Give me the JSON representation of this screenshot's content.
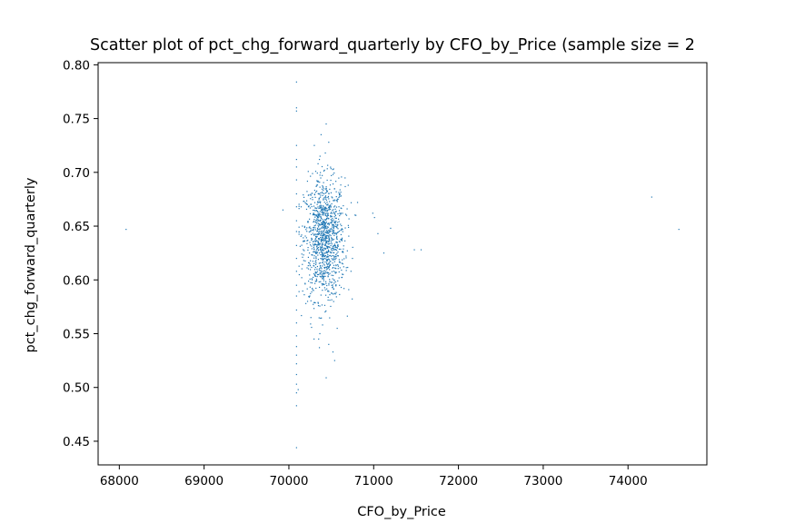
{
  "chart_data": {
    "type": "scatter",
    "title": "Scatter plot of pct_chg_forward_quarterly by CFO_by_Price (sample size = 2",
    "xlabel": "CFO_by_Price",
    "ylabel": "pct_chg_forward_quarterly",
    "xlim": [
      67750,
      74930
    ],
    "ylim": [
      0.428,
      0.802
    ],
    "x_ticks": [
      68000,
      69000,
      70000,
      71000,
      72000,
      73000,
      74000
    ],
    "x_tick_labels": [
      "68000",
      "69000",
      "70000",
      "71000",
      "72000",
      "73000",
      "74000"
    ],
    "y_ticks": [
      0.45,
      0.5,
      0.55,
      0.6,
      0.65,
      0.7,
      0.75,
      0.8
    ],
    "y_tick_labels": [
      "0.45",
      "0.50",
      "0.55",
      "0.60",
      "0.65",
      "0.70",
      "0.75",
      "0.80"
    ],
    "grid": false,
    "marker_color": "#1f77b4",
    "points": [
      [
        68080,
        0.647
      ],
      [
        69930,
        0.665
      ],
      [
        71120,
        0.625
      ],
      [
        71200,
        0.648
      ],
      [
        71480,
        0.628
      ],
      [
        71560,
        0.628
      ],
      [
        74280,
        0.677
      ],
      [
        74600,
        0.647
      ],
      [
        70090,
        0.784
      ],
      [
        70090,
        0.76
      ],
      [
        70090,
        0.757
      ],
      [
        70090,
        0.725
      ],
      [
        70090,
        0.712
      ],
      [
        70090,
        0.705
      ],
      [
        70090,
        0.693
      ],
      [
        70090,
        0.68
      ],
      [
        70090,
        0.668
      ],
      [
        70090,
        0.655
      ],
      [
        70090,
        0.645
      ],
      [
        70090,
        0.632
      ],
      [
        70090,
        0.62
      ],
      [
        70090,
        0.608
      ],
      [
        70090,
        0.595
      ],
      [
        70090,
        0.585
      ],
      [
        70090,
        0.572
      ],
      [
        70090,
        0.56
      ],
      [
        70090,
        0.548
      ],
      [
        70090,
        0.538
      ],
      [
        70090,
        0.53
      ],
      [
        70090,
        0.522
      ],
      [
        70090,
        0.512
      ],
      [
        70090,
        0.503
      ],
      [
        70090,
        0.495
      ],
      [
        70090,
        0.483
      ],
      [
        70090,
        0.444
      ],
      [
        70440,
        0.745
      ],
      [
        70380,
        0.735
      ],
      [
        70300,
        0.725
      ],
      [
        70470,
        0.728
      ],
      [
        70430,
        0.718
      ],
      [
        70360,
        0.712
      ],
      [
        70420,
        0.702
      ],
      [
        70500,
        0.697
      ],
      [
        70470,
        0.54
      ],
      [
        70520,
        0.533
      ],
      [
        70540,
        0.525
      ],
      [
        70360,
        0.537
      ],
      [
        70440,
        0.509
      ],
      [
        70570,
        0.555
      ],
      [
        70260,
        0.565
      ],
      [
        70110,
        0.498
      ],
      [
        70990,
        0.662
      ],
      [
        71010,
        0.658
      ],
      [
        71050,
        0.643
      ],
      [
        70810,
        0.672
      ],
      [
        70790,
        0.66
      ],
      [
        70750,
        0.62
      ],
      [
        70640,
        0.605
      ],
      [
        70650,
        0.592
      ],
      [
        70700,
        0.688
      ],
      [
        70590,
        0.668
      ],
      [
        70200,
        0.578
      ],
      [
        70240,
        0.584
      ]
    ],
    "cluster": {
      "center": [
        70420,
        0.638
      ],
      "spread": [
        120,
        0.028
      ],
      "count": 1150
    }
  }
}
